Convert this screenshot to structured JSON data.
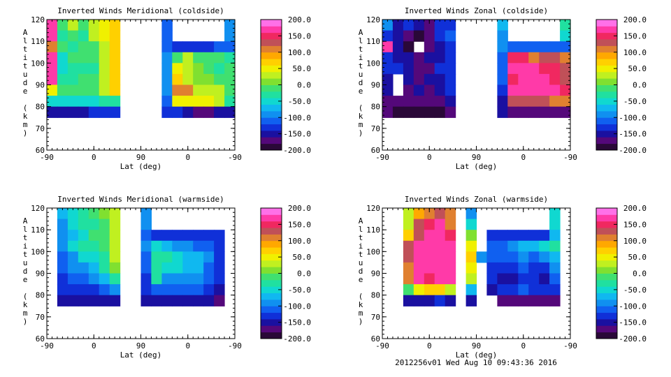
{
  "footer": "2012256v01 Wed Aug 10 09:43:36 2016",
  "colorbar": {
    "labels": [
      "200.0",
      "150.0",
      "100.0",
      "50.0",
      "0.0",
      "-50.0",
      "-100.0",
      "-150.0",
      "-200.0"
    ],
    "range": [
      -200,
      200
    ],
    "colors": [
      "#2a0838",
      "#54087a",
      "#1a10a0",
      "#1030d8",
      "#1060f0",
      "#1090f0",
      "#10b8f0",
      "#10d8d0",
      "#20e0a0",
      "#40e070",
      "#80e030",
      "#c0f020",
      "#f0f000",
      "#ffd000",
      "#ffa800",
      "#e08030",
      "#c05058",
      "#f02860",
      "#ff3aa8",
      "#ff70e8"
    ]
  },
  "chart_data": [
    {
      "type": "heatmap",
      "title": "Inverted Winds Meridional (coldside)",
      "xlabel": "Lat (deg)",
      "ylabel": "Altitude (km)",
      "xticks": [
        "-90",
        "0",
        "90",
        "0",
        "-90"
      ],
      "yticks": [
        "120",
        "110",
        "100",
        "90",
        "80",
        "70",
        "60"
      ],
      "ylim": [
        60,
        120
      ],
      "grid_rows_alt_top_km": [
        120,
        115,
        110,
        105,
        100,
        95,
        90,
        85,
        80
      ],
      "values": [
        [
          170,
          -20,
          20,
          -10,
          30,
          50,
          60,
          null,
          null,
          null,
          null,
          -120,
          null,
          null,
          null,
          null,
          null,
          -100
        ],
        [
          170,
          -30,
          -20,
          -40,
          20,
          40,
          60,
          null,
          null,
          null,
          null,
          -120,
          null,
          null,
          null,
          null,
          null,
          -100
        ],
        [
          100,
          -10,
          -40,
          -20,
          -10,
          30,
          60,
          null,
          null,
          null,
          null,
          -120,
          -130,
          -130,
          -130,
          -130,
          -120,
          -110
        ],
        [
          170,
          -50,
          -20,
          -10,
          -20,
          30,
          60,
          null,
          null,
          null,
          null,
          -100,
          -10,
          20,
          -10,
          -20,
          -10,
          -40
        ],
        [
          170,
          -50,
          -30,
          -40,
          -40,
          20,
          60,
          null,
          null,
          null,
          null,
          -100,
          40,
          20,
          0,
          -20,
          -30,
          -20
        ],
        [
          170,
          -30,
          -40,
          -20,
          -20,
          30,
          60,
          null,
          null,
          null,
          null,
          -100,
          60,
          30,
          10,
          0,
          -10,
          -20
        ],
        [
          40,
          -20,
          -20,
          -20,
          -10,
          30,
          60,
          null,
          null,
          null,
          null,
          -100,
          100,
          100,
          30,
          30,
          20,
          -10
        ],
        [
          -60,
          -50,
          -60,
          -60,
          -50,
          -40,
          -30,
          null,
          null,
          null,
          null,
          -110,
          40,
          40,
          40,
          40,
          20,
          -40
        ],
        [
          -150,
          -160,
          -160,
          -150,
          -140,
          -140,
          -130,
          null,
          null,
          null,
          null,
          -140,
          -140,
          -150,
          -170,
          -170,
          -160,
          -150
        ]
      ]
    },
    {
      "type": "heatmap",
      "title": "Inverted Winds Zonal (coldside)",
      "xlabel": "Lat (deg)",
      "ylabel": "Altitude (km)",
      "xticks": [
        "-90",
        "0",
        "90",
        "0",
        "-90"
      ],
      "yticks": [
        "120",
        "110",
        "100",
        "90",
        "80",
        "70",
        "60"
      ],
      "ylim": [
        60,
        120
      ],
      "values": [
        [
          -100,
          -150,
          -130,
          -160,
          -170,
          -140,
          -130,
          null,
          null,
          null,
          null,
          -80,
          null,
          null,
          null,
          null,
          null,
          -40
        ],
        [
          -140,
          -160,
          -170,
          -190,
          -170,
          -130,
          -110,
          null,
          null,
          null,
          null,
          -90,
          null,
          null,
          null,
          null,
          null,
          -60
        ],
        [
          170,
          -160,
          -190,
          null,
          -170,
          -150,
          -130,
          null,
          null,
          null,
          null,
          -100,
          -120,
          -120,
          -120,
          -120,
          -120,
          -120
        ],
        [
          -130,
          -150,
          -150,
          -180,
          -160,
          -150,
          -130,
          null,
          null,
          null,
          null,
          -110,
          150,
          150,
          110,
          120,
          130,
          110
        ],
        [
          -130,
          -130,
          -150,
          -170,
          -170,
          -140,
          -130,
          null,
          null,
          null,
          null,
          -120,
          160,
          170,
          170,
          150,
          140,
          120
        ],
        [
          -150,
          null,
          -160,
          -170,
          -150,
          -150,
          -130,
          null,
          null,
          null,
          null,
          -120,
          150,
          170,
          160,
          170,
          150,
          130
        ],
        [
          -160,
          null,
          -170,
          -160,
          -180,
          -150,
          -140,
          null,
          null,
          null,
          null,
          -130,
          160,
          170,
          170,
          160,
          160,
          150
        ],
        [
          -170,
          -170,
          -180,
          -180,
          -180,
          -170,
          -150,
          null,
          null,
          null,
          null,
          -150,
          120,
          120,
          120,
          120,
          110,
          100
        ],
        [
          -180,
          -190,
          -190,
          -190,
          -190,
          -190,
          -180,
          null,
          null,
          null,
          null,
          -160,
          -180,
          -170,
          -170,
          -170,
          -170,
          -170
        ]
      ]
    },
    {
      "type": "heatmap",
      "title": "Inverted Winds Meridional (warmside)",
      "xlabel": "Lat (deg)",
      "ylabel": "Altitude (km)",
      "xticks": [
        "-90",
        "0",
        "90",
        "0",
        "-90"
      ],
      "yticks": [
        "120",
        "110",
        "100",
        "90",
        "80",
        "70",
        "60"
      ],
      "ylim": [
        60,
        120
      ],
      "values": [
        [
          null,
          -80,
          -50,
          -30,
          -20,
          0,
          30,
          null,
          null,
          -100,
          null,
          null,
          null,
          null,
          null,
          null,
          null,
          null
        ],
        [
          null,
          -90,
          -60,
          -40,
          -30,
          -10,
          30,
          null,
          null,
          -100,
          null,
          null,
          null,
          null,
          null,
          null,
          null,
          null
        ],
        [
          null,
          -100,
          -70,
          -50,
          -20,
          -10,
          20,
          null,
          null,
          -110,
          -130,
          -130,
          -140,
          -140,
          -140,
          -140,
          -140,
          null
        ],
        [
          null,
          -100,
          -60,
          -40,
          -40,
          -20,
          20,
          null,
          null,
          -100,
          -60,
          -80,
          -90,
          -100,
          -110,
          -120,
          -130,
          null
        ],
        [
          null,
          -110,
          -90,
          -60,
          -50,
          -30,
          20,
          null,
          null,
          -120,
          -40,
          -40,
          -60,
          -70,
          -80,
          -100,
          -130,
          null
        ],
        [
          null,
          -120,
          -100,
          -90,
          -70,
          -40,
          10,
          null,
          null,
          -120,
          -40,
          -60,
          -60,
          -70,
          -70,
          -110,
          -130,
          null
        ],
        [
          null,
          -130,
          -120,
          -110,
          -90,
          -80,
          -40,
          null,
          null,
          -130,
          -30,
          -90,
          -100,
          -100,
          -90,
          -110,
          -140,
          null
        ],
        [
          null,
          -140,
          -140,
          -130,
          -130,
          -120,
          -100,
          null,
          null,
          -140,
          -110,
          -110,
          -120,
          -120,
          -120,
          -130,
          -150,
          null
        ],
        [
          null,
          -160,
          -160,
          -160,
          -160,
          -150,
          -150,
          null,
          null,
          -150,
          -150,
          -160,
          -160,
          -160,
          -160,
          -160,
          -170,
          null
        ]
      ]
    },
    {
      "type": "heatmap",
      "title": "Inverted Winds Zonal (warmside)",
      "xlabel": "Lat (deg)",
      "ylabel": "Altitude (km)",
      "xticks": [
        "-90",
        "0",
        "90",
        "0",
        "-90"
      ],
      "yticks": [
        "120",
        "110",
        "100",
        "90",
        "80",
        "70",
        "60"
      ],
      "ylim": [
        60,
        120
      ],
      "values": [
        [
          null,
          null,
          20,
          90,
          110,
          120,
          100,
          null,
          -100,
          null,
          null,
          null,
          null,
          null,
          null,
          null,
          -50,
          null
        ],
        [
          null,
          null,
          30,
          120,
          150,
          170,
          110,
          null,
          -60,
          null,
          null,
          null,
          null,
          null,
          null,
          null,
          -50,
          null
        ],
        [
          null,
          null,
          60,
          130,
          170,
          170,
          150,
          null,
          10,
          null,
          -140,
          -130,
          -130,
          -130,
          -130,
          -130,
          -80,
          null
        ],
        [
          null,
          null,
          120,
          170,
          170,
          170,
          170,
          null,
          40,
          null,
          -110,
          -110,
          -90,
          -80,
          -80,
          -60,
          -40,
          null
        ],
        [
          null,
          null,
          120,
          170,
          170,
          170,
          170,
          null,
          60,
          -90,
          -110,
          -110,
          -110,
          -100,
          -110,
          -100,
          -70,
          null
        ],
        [
          null,
          null,
          110,
          170,
          170,
          170,
          170,
          null,
          40,
          null,
          -130,
          -140,
          -140,
          -120,
          -130,
          -140,
          -90,
          null
        ],
        [
          null,
          null,
          100,
          170,
          150,
          170,
          170,
          null,
          30,
          null,
          -140,
          -150,
          -150,
          -140,
          -140,
          -150,
          -110,
          null
        ],
        [
          null,
          null,
          -20,
          40,
          60,
          60,
          20,
          null,
          -70,
          null,
          -160,
          -140,
          -130,
          -120,
          -130,
          -130,
          -140,
          null
        ],
        [
          null,
          null,
          -160,
          -160,
          -150,
          -140,
          -150,
          null,
          -150,
          null,
          null,
          -170,
          -170,
          -170,
          -170,
          -170,
          -170,
          null
        ]
      ]
    }
  ]
}
